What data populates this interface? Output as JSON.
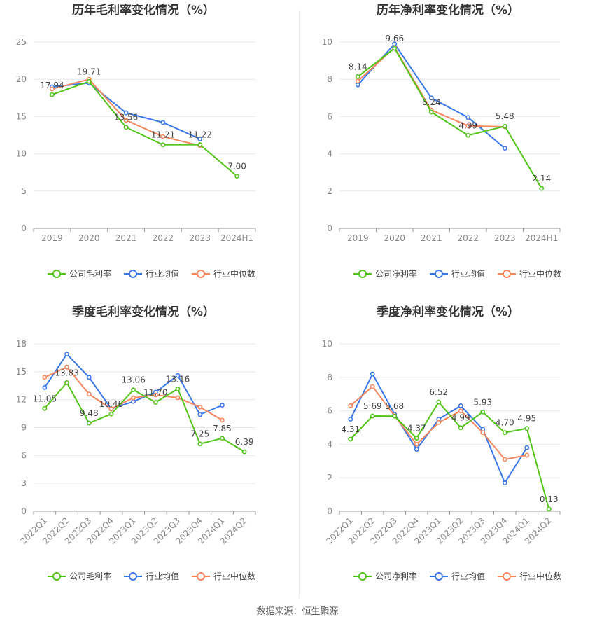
{
  "footer": {
    "source": "数据来源：恒生聚源"
  },
  "colors": {
    "company": "#52c41a",
    "industry_avg": "#3b78e7",
    "industry_median": "#f5875f"
  },
  "chart_data": [
    {
      "type": "line",
      "title": "历年毛利率变化情况（%）",
      "categories": [
        "2019",
        "2020",
        "2021",
        "2022",
        "2023",
        "2024H1"
      ],
      "yticks": [
        0,
        5,
        10,
        15,
        20,
        25
      ],
      "ylim": [
        0,
        25
      ],
      "grid": true,
      "legend_position": "bottom",
      "series": [
        {
          "name": "公司毛利率",
          "color": "#52c41a",
          "values": [
            17.94,
            19.71,
            13.56,
            11.21,
            11.22,
            7.0
          ],
          "labels": [
            "17.94",
            "19.71",
            "13.56",
            "11.21",
            "11.22",
            "7.00"
          ]
        },
        {
          "name": "行业均值",
          "color": "#3b78e7",
          "values": [
            19.0,
            19.5,
            15.5,
            14.2,
            12.0,
            null
          ]
        },
        {
          "name": "行业中位数",
          "color": "#f5875f",
          "values": [
            18.7,
            20.0,
            14.5,
            12.3,
            11.1,
            null
          ]
        }
      ]
    },
    {
      "type": "line",
      "title": "历年净利率变化情况（%）",
      "categories": [
        "2019",
        "2020",
        "2021",
        "2022",
        "2023",
        "2024H1"
      ],
      "yticks": [
        0,
        2,
        4,
        6,
        8,
        10
      ],
      "ylim": [
        0,
        10
      ],
      "grid": true,
      "legend_position": "bottom",
      "series": [
        {
          "name": "公司净利率",
          "color": "#52c41a",
          "values": [
            8.14,
            9.66,
            6.24,
            4.99,
            5.48,
            2.14
          ],
          "labels": [
            "8.14",
            "9.66",
            "6.24",
            "4.99",
            "5.48",
            "2.14"
          ]
        },
        {
          "name": "行业均值",
          "color": "#3b78e7",
          "values": [
            7.7,
            9.9,
            7.0,
            5.95,
            4.3,
            null
          ]
        },
        {
          "name": "行业中位数",
          "color": "#f5875f",
          "values": [
            7.9,
            9.7,
            6.35,
            5.5,
            5.45,
            null
          ]
        }
      ]
    },
    {
      "type": "line",
      "title": "季度毛利率变化情况（%）",
      "categories": [
        "2022Q1",
        "2022Q2",
        "2022Q3",
        "2022Q4",
        "2023Q1",
        "2023Q2",
        "2023Q3",
        "2023Q4",
        "2024Q1",
        "2024Q2"
      ],
      "yticks": [
        0,
        3,
        6,
        9,
        12,
        15,
        18
      ],
      "ylim": [
        0,
        18
      ],
      "grid": true,
      "legend_position": "bottom",
      "series": [
        {
          "name": "公司毛利率",
          "color": "#52c41a",
          "values": [
            11.05,
            13.83,
            9.48,
            10.46,
            13.06,
            11.7,
            13.16,
            7.25,
            7.85,
            6.39
          ],
          "labels": [
            "11.05",
            "13.83",
            "9.48",
            "10.46",
            "13.06",
            "11.70",
            "13.16",
            "7.25",
            "7.85",
            "6.39"
          ]
        },
        {
          "name": "行业均值",
          "color": "#3b78e7",
          "values": [
            13.3,
            16.9,
            14.4,
            11.0,
            11.8,
            12.8,
            14.6,
            10.4,
            11.4,
            null
          ]
        },
        {
          "name": "行业中位数",
          "color": "#f5875f",
          "values": [
            14.4,
            15.5,
            12.6,
            11.0,
            12.2,
            12.5,
            12.2,
            11.2,
            9.8,
            null
          ]
        }
      ]
    },
    {
      "type": "line",
      "title": "季度净利率变化情况（%）",
      "categories": [
        "2022Q1",
        "2022Q2",
        "2022Q3",
        "2022Q4",
        "2023Q1",
        "2023Q2",
        "2023Q3",
        "2023Q4",
        "2024Q1",
        "2024Q2"
      ],
      "yticks": [
        0,
        2,
        4,
        6,
        8,
        10
      ],
      "ylim": [
        0,
        10
      ],
      "grid": true,
      "legend_position": "bottom",
      "series": [
        {
          "name": "公司净利率",
          "color": "#52c41a",
          "values": [
            4.31,
            5.69,
            5.68,
            4.37,
            6.52,
            4.99,
            5.93,
            4.7,
            4.95,
            0.13
          ],
          "labels": [
            "4.31",
            "5.69",
            "5.68",
            "4.37",
            "6.52",
            "4.99",
            "5.93",
            "4.70",
            "4.95",
            "0.13"
          ]
        },
        {
          "name": "行业均值",
          "color": "#3b78e7",
          "values": [
            5.5,
            8.2,
            5.8,
            3.7,
            5.5,
            6.3,
            4.9,
            1.7,
            3.8,
            null
          ]
        },
        {
          "name": "行业中位数",
          "color": "#f5875f",
          "values": [
            6.3,
            7.45,
            5.7,
            4.0,
            5.3,
            6.0,
            4.7,
            3.1,
            3.35,
            null
          ]
        }
      ]
    }
  ]
}
